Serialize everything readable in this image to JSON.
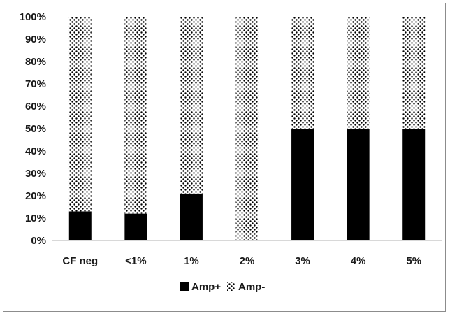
{
  "chart_data": {
    "type": "bar",
    "stacked": true,
    "categories": [
      "CF neg",
      "<1%",
      "1%",
      "2%",
      "3%",
      "4%",
      "5%"
    ],
    "series": [
      {
        "name": "Amp+",
        "values": [
          13,
          12,
          21,
          0,
          50,
          50,
          50
        ],
        "color": "#000000",
        "pattern": "solid"
      },
      {
        "name": "Amp-",
        "values": [
          87,
          88,
          79,
          100,
          50,
          50,
          50
        ],
        "color": "#000000",
        "pattern": "dots"
      }
    ],
    "yticks": [
      "0%",
      "10%",
      "20%",
      "30%",
      "40%",
      "50%",
      "60%",
      "70%",
      "80%",
      "90%",
      "100%"
    ],
    "ylim": [
      0,
      100
    ],
    "title": "",
    "xlabel": "",
    "ylabel": "",
    "legend_position": "bottom",
    "grid": false
  }
}
